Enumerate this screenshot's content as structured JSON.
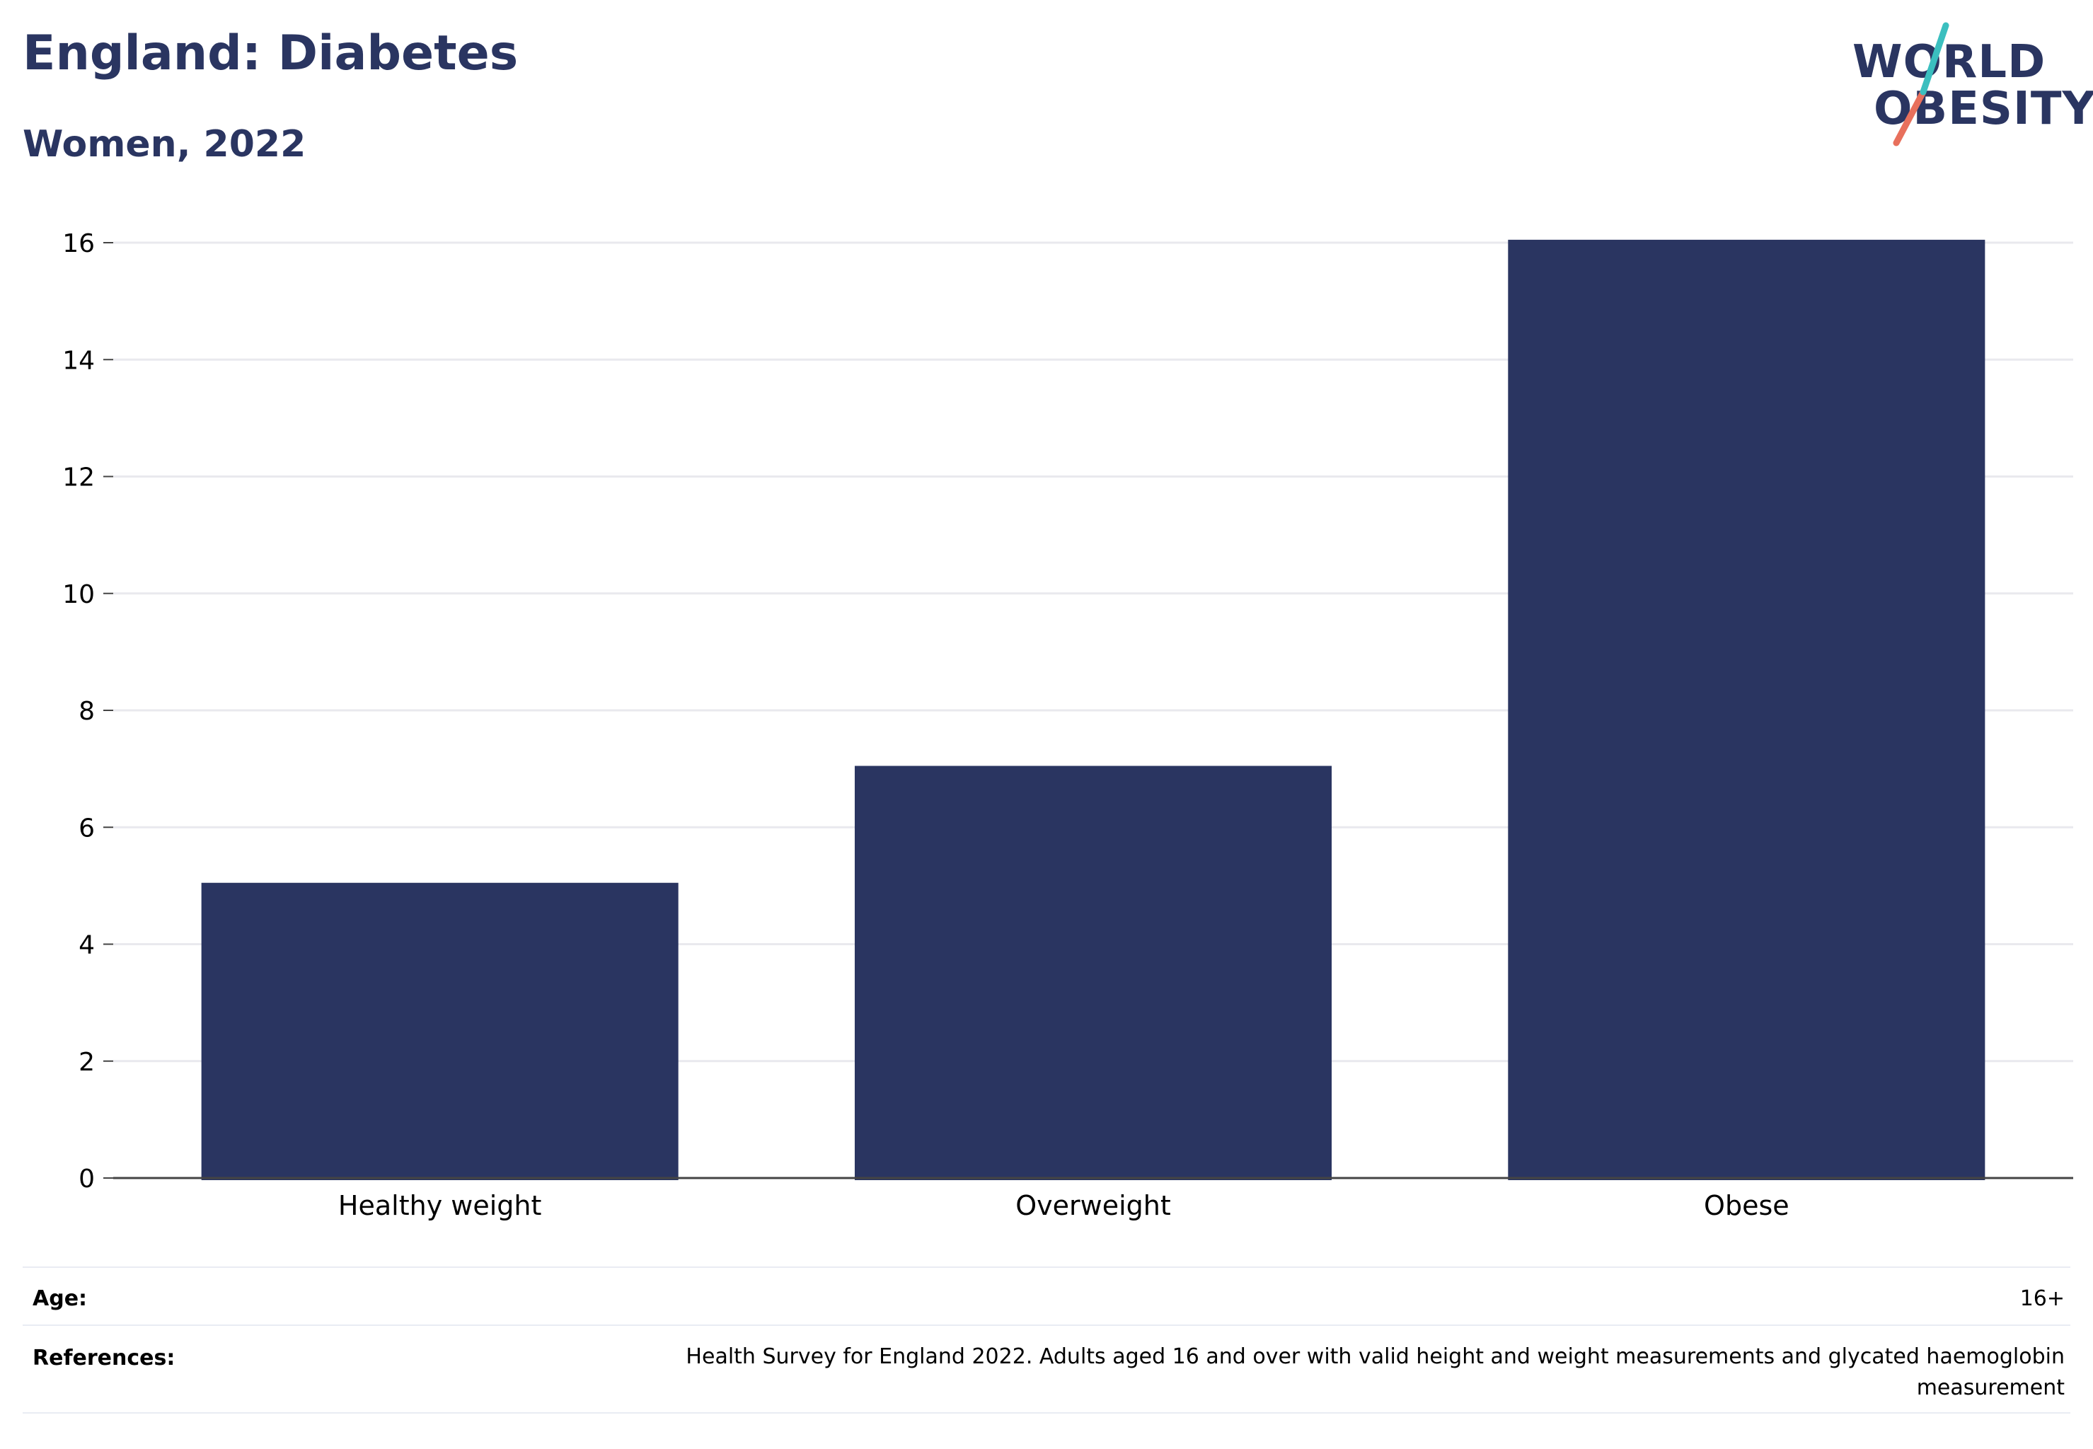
{
  "title": "England: Diabetes",
  "subtitle": "Women, 2022",
  "logo": {
    "line1": "WORLD",
    "line2": "OBESITY"
  },
  "colors": {
    "bar": "#2a3561",
    "title": "#2a3561",
    "grid": "#e9e9ee",
    "axis": "#444444",
    "logo_teal": "#3bbfbf",
    "logo_coral": "#e8705c"
  },
  "chart_data": {
    "type": "bar",
    "categories": [
      "Healthy weight",
      "Overweight",
      "Obese"
    ],
    "values": [
      5.05,
      7.05,
      16.05
    ],
    "ylim": [
      0,
      16
    ],
    "yticks": [
      0,
      2,
      4,
      6,
      8,
      10,
      12,
      14,
      16
    ],
    "grid": true,
    "legend": "none"
  },
  "meta": {
    "age_label": "Age:",
    "age_value": "16+",
    "references_label": "References:",
    "references_value_line1": "Health Survey for England 2022. Adults aged 16 and over with valid height and weight measurements and glycated haemoglobin",
    "references_value_line2": "measurement"
  }
}
